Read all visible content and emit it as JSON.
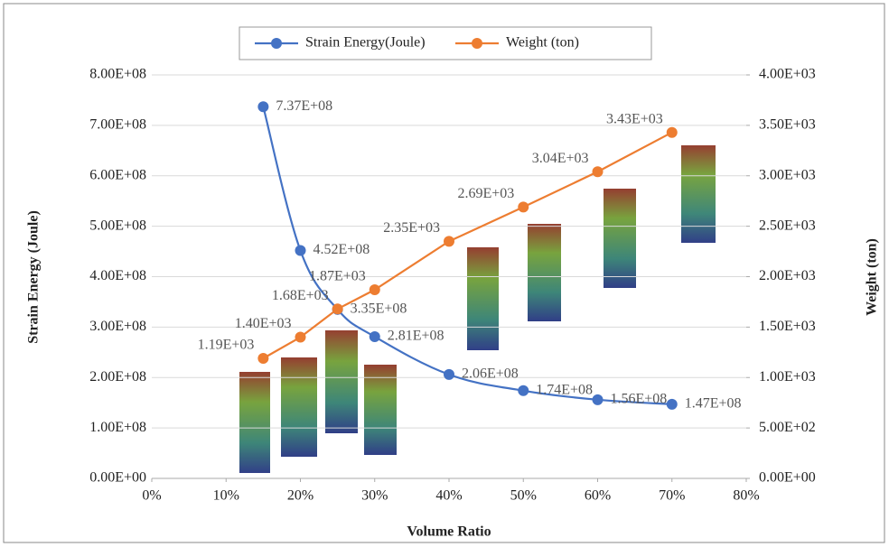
{
  "chart_data": {
    "type": "line",
    "x_label": "Volume Ratio",
    "y_label": "Strain Energy (Joule)",
    "y2_label": "Weight (ton)",
    "x": [
      15,
      20,
      25,
      30,
      40,
      50,
      60,
      70
    ],
    "xlim": [
      0,
      80
    ],
    "xticks": [
      {
        "value": 0,
        "label": "0%"
      },
      {
        "value": 10,
        "label": "10%"
      },
      {
        "value": 20,
        "label": "20%"
      },
      {
        "value": 30,
        "label": "30%"
      },
      {
        "value": 40,
        "label": "40%"
      },
      {
        "value": 50,
        "label": "50%"
      },
      {
        "value": 60,
        "label": "60%"
      },
      {
        "value": 70,
        "label": "70%"
      },
      {
        "value": 80,
        "label": "80%"
      }
    ],
    "ylim": [
      0,
      800000000
    ],
    "yticks": [
      {
        "value": 0,
        "label": "0.00E+00"
      },
      {
        "value": 100000000,
        "label": "1.00E+08"
      },
      {
        "value": 200000000,
        "label": "2.00E+08"
      },
      {
        "value": 300000000,
        "label": "3.00E+08"
      },
      {
        "value": 400000000,
        "label": "4.00E+08"
      },
      {
        "value": 500000000,
        "label": "5.00E+08"
      },
      {
        "value": 600000000,
        "label": "6.00E+08"
      },
      {
        "value": 700000000,
        "label": "7.00E+08"
      },
      {
        "value": 800000000,
        "label": "8.00E+08"
      }
    ],
    "y2lim": [
      0,
      4000
    ],
    "y2ticks": [
      {
        "value": 0,
        "label": "0.00E+00"
      },
      {
        "value": 500,
        "label": "5.00E+02"
      },
      {
        "value": 1000,
        "label": "1.00E+03"
      },
      {
        "value": 1500,
        "label": "1.50E+03"
      },
      {
        "value": 2000,
        "label": "2.00E+03"
      },
      {
        "value": 2500,
        "label": "2.50E+03"
      },
      {
        "value": 3000,
        "label": "3.00E+03"
      },
      {
        "value": 3500,
        "label": "3.50E+03"
      },
      {
        "value": 4000,
        "label": "4.00E+03"
      }
    ],
    "grid": true,
    "legend": "top",
    "series": [
      {
        "name": "Strain Energy(Joule)",
        "color": "#4472c4",
        "smooth": true,
        "values": [
          737000000,
          452000000,
          335000000,
          281000000,
          206000000,
          174000000,
          156000000,
          147000000
        ],
        "value_labels": [
          "7.37E+08",
          "4.52E+08",
          "3.35E+08",
          "2.81E+08",
          "2.06E+08",
          "1.74E+08",
          "1.56E+08",
          "1.47E+08"
        ]
      },
      {
        "name": "Weight (ton)",
        "color": "#ed7d31",
        "axis": "y2",
        "values": [
          1190,
          1400,
          1680,
          1870,
          2350,
          2690,
          3040,
          3430
        ],
        "value_labels": [
          "1.19E+03",
          "1.40E+03",
          "1.68E+03",
          "1.87E+03",
          "2.35E+03",
          "2.69E+03",
          "3.04E+03",
          "3.43E+03"
        ]
      }
    ]
  }
}
